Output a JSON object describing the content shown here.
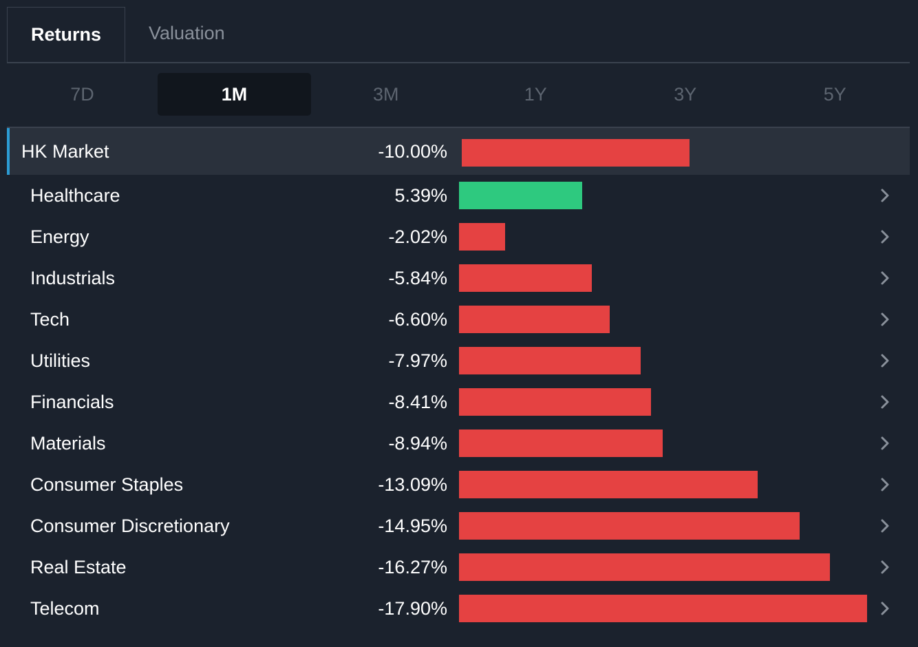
{
  "tabs": [
    {
      "label": "Returns",
      "active": true
    },
    {
      "label": "Valuation",
      "active": false
    }
  ],
  "periods": [
    {
      "label": "7D",
      "active": false
    },
    {
      "label": "1M",
      "active": true
    },
    {
      "label": "3M",
      "active": false
    },
    {
      "label": "1Y",
      "active": false
    },
    {
      "label": "3Y",
      "active": false
    },
    {
      "label": "5Y",
      "active": false
    }
  ],
  "colors": {
    "positive": "#2ec97f",
    "negative": "#e54242",
    "accent": "#2b9bd3"
  },
  "chart_data": {
    "type": "bar",
    "orientation": "horizontal",
    "categories": [
      "HK Market",
      "Healthcare",
      "Energy",
      "Industrials",
      "Tech",
      "Utilities",
      "Financials",
      "Materials",
      "Consumer Staples",
      "Consumer Discretionary",
      "Real Estate",
      "Telecom"
    ],
    "values": [
      -10.0,
      5.39,
      -2.02,
      -5.84,
      -6.6,
      -7.97,
      -8.41,
      -8.94,
      -13.09,
      -14.95,
      -16.27,
      -17.9
    ],
    "labels": [
      "-10.00%",
      "5.39%",
      "-2.02%",
      "-5.84%",
      "-6.60%",
      "-7.97%",
      "-8.41%",
      "-8.94%",
      "-13.09%",
      "-14.95%",
      "-16.27%",
      "-17.90%"
    ],
    "bar_magnitude": "absolute",
    "max_abs": 17.9
  }
}
